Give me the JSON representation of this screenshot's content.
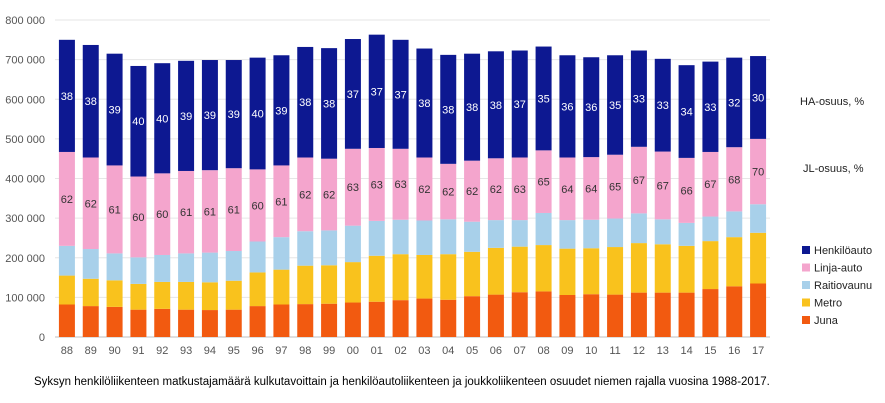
{
  "chart_data": {
    "type": "bar",
    "stacked": true,
    "categories": [
      "88",
      "89",
      "90",
      "91",
      "92",
      "93",
      "94",
      "95",
      "96",
      "97",
      "98",
      "99",
      "00",
      "01",
      "02",
      "03",
      "04",
      "05",
      "06",
      "07",
      "08",
      "09",
      "10",
      "11",
      "12",
      "13",
      "14",
      "15",
      "16",
      "17"
    ],
    "ylim": [
      0,
      800000
    ],
    "yticks": [
      0,
      100000,
      200000,
      300000,
      400000,
      500000,
      600000,
      700000,
      800000
    ],
    "ytick_labels": [
      "0",
      "100 000",
      "200 000",
      "300 000",
      "400 000",
      "500 000",
      "600 000",
      "700 000",
      "800 000"
    ],
    "series": [
      {
        "name": "Juna",
        "color": "#f25a10",
        "values": [
          82000,
          78000,
          76000,
          69000,
          71000,
          69000,
          68000,
          69000,
          78000,
          82000,
          83000,
          84000,
          87000,
          89000,
          93000,
          97000,
          94000,
          103000,
          107000,
          113000,
          115000,
          106000,
          108000,
          107000,
          112000,
          112000,
          112000,
          121000,
          128000,
          135000
        ]
      },
      {
        "name": "Metro",
        "color": "#f9c21d",
        "values": [
          73000,
          69000,
          67000,
          65000,
          68000,
          70000,
          70000,
          73000,
          85000,
          88000,
          97000,
          97000,
          102000,
          116000,
          116000,
          110000,
          115000,
          112000,
          118000,
          115000,
          117000,
          117000,
          116000,
          120000,
          125000,
          122000,
          118000,
          121000,
          124000,
          128000
        ]
      },
      {
        "name": "Raitiovaunu",
        "color": "#a8d0ea",
        "values": [
          75000,
          75000,
          68000,
          67000,
          68000,
          72000,
          75000,
          75000,
          78000,
          82000,
          87000,
          88000,
          92000,
          88000,
          87000,
          87000,
          88000,
          76000,
          70000,
          67000,
          81000,
          72000,
          72000,
          72000,
          75000,
          63000,
          58000,
          62000,
          65000,
          72000
        ]
      },
      {
        "name": "Linja-auto",
        "color": "#f4a5cd",
        "values": [
          237000,
          231000,
          222000,
          204000,
          206000,
          208000,
          208000,
          209000,
          182000,
          181000,
          186000,
          181000,
          194000,
          184000,
          179000,
          159000,
          140000,
          154000,
          156000,
          158000,
          158000,
          158000,
          158000,
          161000,
          168000,
          171000,
          164000,
          163000,
          162000,
          165000
        ]
      },
      {
        "name": "Henkilöauto",
        "color": "#0d1891",
        "values": [
          283000,
          284000,
          282000,
          279000,
          278000,
          278000,
          278000,
          273000,
          282000,
          278000,
          279000,
          279000,
          277000,
          286000,
          275000,
          275000,
          275000,
          270000,
          270000,
          270000,
          262000,
          258000,
          252000,
          251000,
          243000,
          234000,
          234000,
          228000,
          226000,
          209000
        ]
      }
    ],
    "ha_share": [
      38,
      38,
      39,
      40,
      40,
      39,
      39,
      39,
      40,
      39,
      38,
      38,
      37,
      37,
      37,
      38,
      38,
      38,
      38,
      37,
      35,
      36,
      36,
      35,
      33,
      33,
      34,
      33,
      32,
      30
    ],
    "jl_share": [
      62,
      62,
      61,
      60,
      60,
      61,
      61,
      61,
      60,
      61,
      62,
      62,
      63,
      63,
      63,
      62,
      62,
      62,
      62,
      63,
      65,
      64,
      64,
      65,
      67,
      67,
      66,
      67,
      68,
      70
    ],
    "share_labels": {
      "ha": "HA-osuus, %",
      "jl": "JL-osuus, %"
    },
    "caption": "Syksyn henkilöliikenteen matkustajamäärä kulkutavoittain ja henkilöautoliikenteen ja joukkoliikenteen osuudet niemen rajalla vuosina 1988-2017."
  }
}
